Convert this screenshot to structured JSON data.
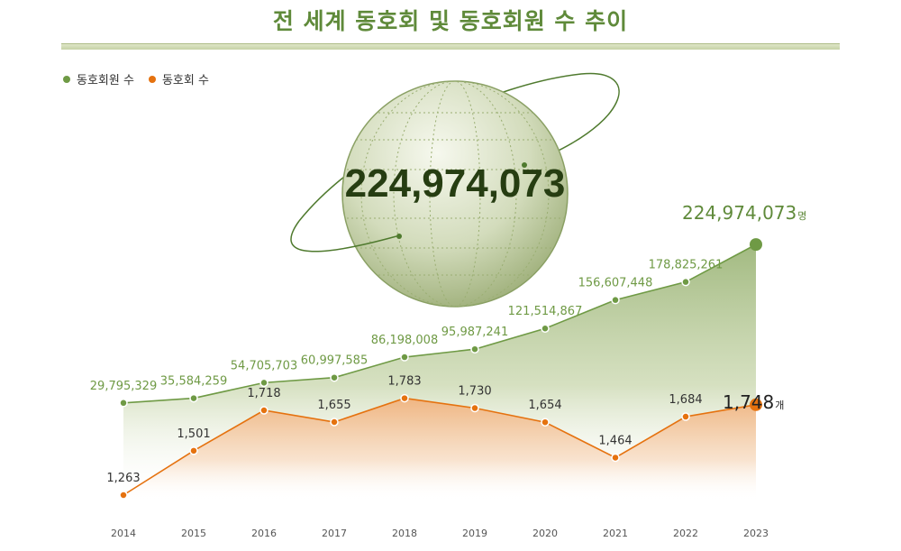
{
  "title": "전 세계 동호회 및 동호회원 수 추이",
  "legend": [
    {
      "label": "동호회원 수",
      "color": "#6f9a45"
    },
    {
      "label": "동호회 수",
      "color": "#e5720f"
    }
  ],
  "highlight": {
    "globe_value": "224,974,073",
    "members_last_label": "224,974,073",
    "members_unit": "명",
    "clubs_last_label": "1,748",
    "clubs_unit": "개"
  },
  "chart_data": {
    "type": "area",
    "categories": [
      "2014",
      "2015",
      "2016",
      "2017",
      "2018",
      "2019",
      "2020",
      "2021",
      "2022",
      "2023"
    ],
    "series": [
      {
        "name": "동호회원 수",
        "color": "#6f9a45",
        "values": [
          29795329,
          35584259,
          54705703,
          60997585,
          86198008,
          95987241,
          121514867,
          156607448,
          178825261,
          224974073
        ],
        "labels": [
          "29,795,329",
          "35,584,259",
          "54,705,703",
          "60,997,585",
          "86,198,008",
          "95,987,241",
          "121,514,867",
          "156,607,448",
          "178,825,261",
          "224,974,073"
        ]
      },
      {
        "name": "동호회 수",
        "color": "#e5720f",
        "values": [
          1263,
          1501,
          1718,
          1655,
          1783,
          1730,
          1654,
          1464,
          1684,
          1748
        ],
        "labels": [
          "1,263",
          "1,501",
          "1,718",
          "1,655",
          "1,783",
          "1,730",
          "1,654",
          "1,464",
          "1,684",
          "1,748"
        ]
      }
    ]
  }
}
